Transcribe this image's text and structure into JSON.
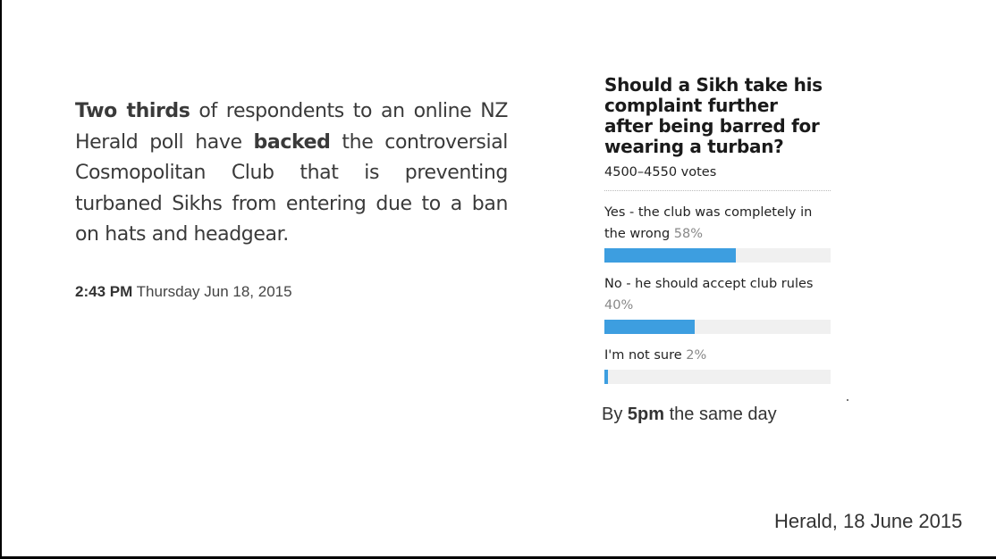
{
  "article": {
    "p1_bold": "Two thirds",
    "p2": " of respondents to an online NZ Herald poll have ",
    "p3_bold": "backed",
    "p4": " the controversial Cosmopolitan Club that is preventing turbaned Sikhs from entering due to a ban on hats and headgear."
  },
  "timestamp": {
    "time": "2:43 PM",
    "date": "Thursday Jun 18, 2015"
  },
  "poll": {
    "title": "Should a Sikh take his complaint further after being barred for wearing a turban?",
    "votes": "4500–4550 votes",
    "options": [
      {
        "label": "Yes - the club was completely in the wrong",
        "pct_text": "58%",
        "pct": 58
      },
      {
        "label": "No - he should accept club rules",
        "pct_text": "40%",
        "pct": 40
      },
      {
        "label": "I'm not sure",
        "pct_text": "2%",
        "pct": 2
      }
    ],
    "bar_color": "#3d9ee0"
  },
  "caption": {
    "prefix": "By ",
    "bold": "5pm",
    "suffix": " the same day"
  },
  "source": "Herald, 18 June 2015"
}
